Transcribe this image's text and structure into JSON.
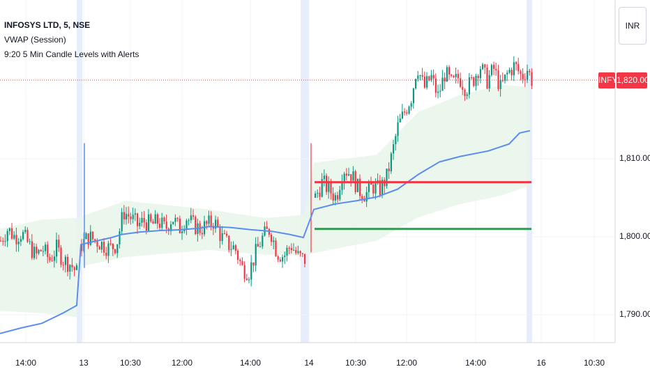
{
  "chart_data": {
    "type": "candlestick",
    "symbol": "INFOSYS LTD, 5, NSE",
    "indicators": [
      "VWAP (Session)",
      "9:20 5 Min Candle Levels with Alerts"
    ],
    "currency_label": "INR",
    "last_price": {
      "symbol": "INFY",
      "value": "1,820.00",
      "y": 1820.0
    },
    "y_ticks": [
      {
        "label": "1,790.00",
        "y": 1790
      },
      {
        "label": "1,800.00",
        "y": 1800
      },
      {
        "label": "1,810.00",
        "y": 1810
      }
    ],
    "x_ticks": [
      "14:00",
      "13",
      "10:30",
      "12:00",
      "14:00",
      "14",
      "10:30",
      "12:00",
      "14:00",
      "16",
      "10:30"
    ],
    "levels": {
      "high_920": 1807.0,
      "low_920": 1801.0
    },
    "colors": {
      "up": "#089981",
      "down": "#f23645",
      "vwap": "#5b8def",
      "band": "#e8f5e9",
      "level_high": "#f23645",
      "level_low": "#21a34a",
      "session_highlight": "#dbe7fb"
    },
    "vwap_path": [
      [
        0,
        1787.6
      ],
      [
        30,
        1788.3
      ],
      [
        60,
        1788.9
      ],
      [
        90,
        1790.2
      ],
      [
        110,
        1791.2
      ],
      [
        116,
        1799.0
      ],
      [
        140,
        1799.5
      ],
      [
        160,
        1799.9
      ],
      [
        175,
        1800.3
      ],
      [
        200,
        1800.6
      ],
      [
        230,
        1800.8
      ],
      [
        260,
        1800.9
      ],
      [
        285,
        1801.1
      ],
      [
        300,
        1801.3
      ],
      [
        330,
        1801.2
      ],
      [
        360,
        1800.9
      ],
      [
        390,
        1800.7
      ],
      [
        415,
        1800.3
      ],
      [
        435,
        1799.9
      ],
      [
        450,
        1803.5
      ],
      [
        480,
        1804.2
      ],
      [
        510,
        1804.6
      ],
      [
        540,
        1805.1
      ],
      [
        570,
        1806.1
      ],
      [
        600,
        1808.0
      ],
      [
        630,
        1809.6
      ],
      [
        660,
        1810.3
      ],
      [
        700,
        1811.0
      ],
      [
        730,
        1811.9
      ],
      [
        745,
        1813.3
      ],
      [
        760,
        1813.6
      ]
    ],
    "band_upper": [
      [
        0,
        1801.0
      ],
      [
        60,
        1802.2
      ],
      [
        110,
        1802.4
      ],
      [
        116,
        1802.6
      ],
      [
        180,
        1804.6
      ],
      [
        300,
        1803.5
      ],
      [
        380,
        1802.4
      ],
      [
        435,
        1802.8
      ],
      [
        450,
        1809.5
      ],
      [
        540,
        1810.5
      ],
      [
        600,
        1816.0
      ],
      [
        660,
        1818.2
      ],
      [
        720,
        1819.5
      ],
      [
        760,
        1819.2
      ]
    ],
    "band_lower": [
      [
        0,
        1790.5
      ],
      [
        60,
        1790.2
      ],
      [
        110,
        1789.7
      ],
      [
        116,
        1796.2
      ],
      [
        180,
        1797.4
      ],
      [
        300,
        1798.3
      ],
      [
        380,
        1797.7
      ],
      [
        435,
        1797.6
      ],
      [
        450,
        1797.9
      ],
      [
        540,
        1799.5
      ],
      [
        600,
        1802.5
      ],
      [
        660,
        1804.2
      ],
      [
        720,
        1805.3
      ],
      [
        760,
        1806.6
      ]
    ],
    "candles_day2": {
      "start_x": 451,
      "end_x": 762,
      "path": [
        [
          0,
          1805.0
        ],
        [
          10,
          1807.0
        ],
        [
          20,
          1806.0
        ],
        [
          30,
          1805.0
        ],
        [
          40,
          1808.8
        ],
        [
          52,
          1808.0
        ],
        [
          62,
          1806.0
        ],
        [
          72,
          1805.4
        ],
        [
          82,
          1806.5
        ],
        [
          92,
          1806.0
        ],
        [
          102,
          1807.5
        ],
        [
          110,
          1810.5
        ],
        [
          118,
          1814.0
        ],
        [
          128,
          1816.0
        ],
        [
          138,
          1818.0
        ],
        [
          146,
          1822.0
        ],
        [
          156,
          1819.0
        ],
        [
          166,
          1820.5
        ],
        [
          176,
          1818.0
        ],
        [
          186,
          1821.0
        ],
        [
          196,
          1819.5
        ],
        [
          206,
          1820.5
        ],
        [
          216,
          1819.0
        ],
        [
          226,
          1820.0
        ],
        [
          236,
          1822.0
        ],
        [
          246,
          1820.0
        ],
        [
          256,
          1821.5
        ],
        [
          266,
          1819.0
        ],
        [
          276,
          1821.0
        ],
        [
          286,
          1822.0
        ],
        [
          296,
          1820.5
        ],
        [
          304,
          1821.5
        ],
        [
          311,
          1820.0
        ]
      ]
    },
    "candles_day1": {
      "start_x": 116,
      "end_x": 437,
      "path": [
        [
          0,
          1799.0
        ],
        [
          10,
          1800.0
        ],
        [
          20,
          1799.5
        ],
        [
          30,
          1799.0
        ],
        [
          40,
          1798.5
        ],
        [
          50,
          1799.0
        ],
        [
          60,
          1803.2
        ],
        [
          70,
          1802.5
        ],
        [
          80,
          1801.5
        ],
        [
          90,
          1802.0
        ],
        [
          100,
          1801.5
        ],
        [
          110,
          1802.0
        ],
        [
          120,
          1801.0
        ],
        [
          130,
          1802.5
        ],
        [
          140,
          1801.0
        ],
        [
          150,
          1802.5
        ],
        [
          160,
          1801.5
        ],
        [
          170,
          1801.0
        ],
        [
          180,
          1801.5
        ],
        [
          190,
          1802.0
        ],
        [
          200,
          1800.0
        ],
        [
          210,
          1799.0
        ],
        [
          220,
          1798.5
        ],
        [
          230,
          1796.0
        ],
        [
          240,
          1795.5
        ],
        [
          250,
          1798.0
        ],
        [
          260,
          1800.0
        ],
        [
          270,
          1801.0
        ],
        [
          280,
          1798.0
        ],
        [
          290,
          1797.5
        ],
        [
          300,
          1799.0
        ],
        [
          310,
          1797.5
        ],
        [
          321,
          1797.0
        ]
      ]
    },
    "candles_day0": {
      "start_x": 0,
      "end_x": 112,
      "path": [
        [
          0,
          1799.5
        ],
        [
          10,
          1801.0
        ],
        [
          20,
          1800.0
        ],
        [
          30,
          1800.5
        ],
        [
          40,
          1799.0
        ],
        [
          50,
          1797.5
        ],
        [
          60,
          1798.5
        ],
        [
          70,
          1797.0
        ],
        [
          80,
          1798.5
        ],
        [
          90,
          1797.0
        ],
        [
          100,
          1796.5
        ],
        [
          112,
          1795.0
        ]
      ]
    }
  }
}
